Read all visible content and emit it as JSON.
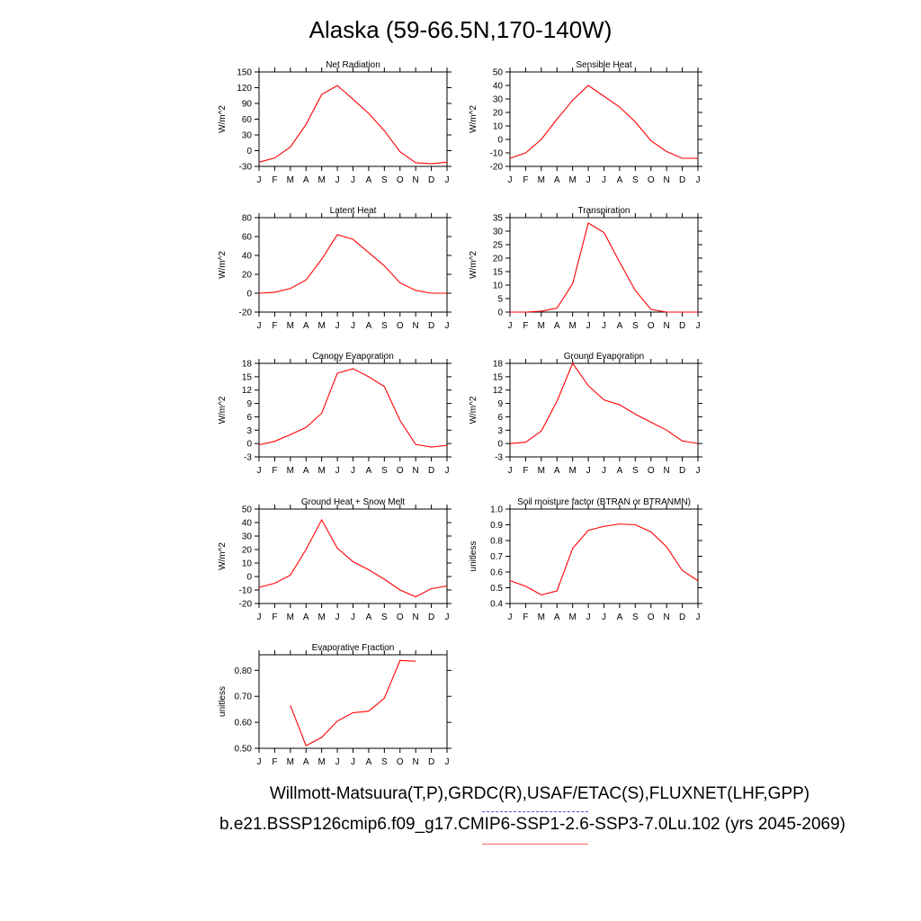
{
  "page": {
    "title": "Alaska (59-66.5N,170-140W)",
    "footer_line1": "Willmott-Matsuura(T,P),GRDC(R),USAF/ETAC(S),FLUXNET(LHF,GPP)",
    "footer_line2": "b.e21.BSSP126cmip6.f09_g17.CMIP6-SSP1-2.6-SSP3-7.0Lu.102 (yrs 2045-2069)"
  },
  "colors": {
    "model_line": "#ff0000",
    "obs_legend": "#5555dd",
    "model_legend": "#ff6666",
    "axis": "#000000"
  },
  "chart_data": [
    {
      "type": "line",
      "title": "Net Radiation",
      "ylabel": "W/m^2",
      "categories": [
        "J",
        "F",
        "M",
        "A",
        "M",
        "J",
        "J",
        "A",
        "S",
        "O",
        "N",
        "D",
        "J"
      ],
      "ylim": [
        -30,
        150
      ],
      "yticks": [
        -30,
        0,
        30,
        60,
        90,
        120,
        150
      ],
      "ytick_labels": [
        "-30",
        "0",
        "30",
        "60",
        "90",
        "120",
        "150"
      ],
      "values": [
        -22,
        -14,
        7,
        50,
        107,
        124,
        98,
        71,
        38,
        -2,
        -23,
        -25,
        -22
      ]
    },
    {
      "type": "line",
      "title": "Sensible Heat",
      "ylabel": "W/m^2",
      "categories": [
        "J",
        "F",
        "M",
        "A",
        "M",
        "J",
        "J",
        "A",
        "S",
        "O",
        "N",
        "D",
        "J"
      ],
      "ylim": [
        -20,
        50
      ],
      "yticks": [
        -20,
        -10,
        0,
        10,
        20,
        30,
        40,
        50
      ],
      "ytick_labels": [
        "-20",
        "-10",
        "0",
        "10",
        "20",
        "30",
        "40",
        "50"
      ],
      "values": [
        -14,
        -10,
        0,
        15,
        29,
        40,
        32,
        24,
        13,
        -1,
        -9,
        -14,
        -14
      ]
    },
    {
      "type": "line",
      "title": "Latent Heat",
      "ylabel": "W/m^2",
      "categories": [
        "J",
        "F",
        "M",
        "A",
        "M",
        "J",
        "J",
        "A",
        "S",
        "O",
        "N",
        "D",
        "J"
      ],
      "ylim": [
        -20,
        80
      ],
      "yticks": [
        -20,
        0,
        20,
        40,
        60,
        80
      ],
      "ytick_labels": [
        "-20",
        "0",
        "20",
        "40",
        "60",
        "80"
      ],
      "values": [
        0,
        1,
        5,
        14,
        36,
        62,
        57,
        43,
        29,
        11,
        3,
        0,
        0
      ]
    },
    {
      "type": "line",
      "title": "Transpiration",
      "ylabel": "W/m^2",
      "categories": [
        "J",
        "F",
        "M",
        "A",
        "M",
        "J",
        "J",
        "A",
        "S",
        "O",
        "N",
        "D",
        "J"
      ],
      "ylim": [
        0,
        35
      ],
      "yticks": [
        0,
        5,
        10,
        15,
        20,
        25,
        30,
        35
      ],
      "ytick_labels": [
        "0",
        "5",
        "10",
        "15",
        "20",
        "25",
        "30",
        "35"
      ],
      "values": [
        0,
        0,
        0.3,
        1.5,
        10.5,
        33,
        29.5,
        18.5,
        8,
        1,
        0,
        0,
        0
      ]
    },
    {
      "type": "line",
      "title": "Canopy Evaporation",
      "ylabel": "W/m^2",
      "categories": [
        "J",
        "F",
        "M",
        "A",
        "M",
        "J",
        "J",
        "A",
        "S",
        "O",
        "N",
        "D",
        "J"
      ],
      "ylim": [
        -3,
        18
      ],
      "yticks": [
        -3,
        0,
        3,
        6,
        9,
        12,
        15,
        18
      ],
      "ytick_labels": [
        "-3",
        "0",
        "3",
        "6",
        "9",
        "12",
        "15",
        "18"
      ],
      "values": [
        -0.3,
        0.5,
        2,
        3.6,
        6.8,
        15.8,
        16.8,
        15,
        12.8,
        5.2,
        -0.2,
        -0.8,
        -0.4
      ]
    },
    {
      "type": "line",
      "title": "Ground Evaporation",
      "ylabel": "W/m^2",
      "categories": [
        "J",
        "F",
        "M",
        "A",
        "M",
        "J",
        "J",
        "A",
        "S",
        "O",
        "N",
        "D",
        "J"
      ],
      "ylim": [
        -3,
        18
      ],
      "yticks": [
        -3,
        0,
        3,
        6,
        9,
        12,
        15,
        18
      ],
      "ytick_labels": [
        "-3",
        "0",
        "3",
        "6",
        "9",
        "12",
        "15",
        "18"
      ],
      "values": [
        0,
        0.3,
        2.8,
        9.5,
        18,
        13,
        9.8,
        8.7,
        6.6,
        4.8,
        3,
        0.6,
        0
      ]
    },
    {
      "type": "line",
      "title": "Ground Heat + Snow Melt",
      "ylabel": "W/m^2",
      "categories": [
        "J",
        "F",
        "M",
        "A",
        "M",
        "J",
        "J",
        "A",
        "S",
        "O",
        "N",
        "D",
        "J"
      ],
      "ylim": [
        -20,
        50
      ],
      "yticks": [
        -20,
        -10,
        0,
        10,
        20,
        30,
        40,
        50
      ],
      "ytick_labels": [
        "-20",
        "-10",
        "0",
        "10",
        "20",
        "30",
        "40",
        "50"
      ],
      "values": [
        -8,
        -5,
        1,
        20,
        42,
        21,
        11,
        5,
        -2,
        -10,
        -15,
        -9,
        -7
      ]
    },
    {
      "type": "line",
      "title": "Soil moisture factor (BTRAN or BTRANMN)",
      "ylabel": "unitless",
      "categories": [
        "J",
        "F",
        "M",
        "A",
        "M",
        "J",
        "J",
        "A",
        "S",
        "O",
        "N",
        "D",
        "J"
      ],
      "ylim": [
        0.4,
        1.0
      ],
      "yticks": [
        0.4,
        0.5,
        0.6,
        0.7,
        0.8,
        0.9,
        1.0
      ],
      "ytick_labels": [
        "0.4",
        "0.5",
        "0.6",
        "0.7",
        "0.8",
        "0.9",
        "1.0"
      ],
      "values": [
        0.545,
        0.51,
        0.455,
        0.48,
        0.75,
        0.865,
        0.89,
        0.905,
        0.9,
        0.855,
        0.76,
        0.61,
        0.545
      ]
    },
    {
      "type": "line",
      "title": "Evaporative Fraction",
      "ylabel": "unitless",
      "categories": [
        "J",
        "F",
        "M",
        "A",
        "M",
        "J",
        "J",
        "A",
        "S",
        "O",
        "N",
        "D",
        "J"
      ],
      "ylim": [
        0.5,
        0.86
      ],
      "yticks": [
        0.5,
        0.6,
        0.7,
        0.8
      ],
      "ytick_labels": [
        "0.50",
        "0.60",
        "0.70",
        "0.80"
      ],
      "values": [
        null,
        null,
        0.665,
        0.51,
        0.542,
        0.605,
        0.637,
        0.643,
        0.693,
        0.838,
        0.835,
        null,
        null
      ]
    }
  ]
}
